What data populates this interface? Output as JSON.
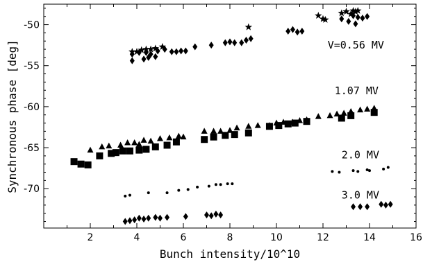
{
  "chart_data": {
    "type": "scatter",
    "title": "",
    "xlabel": "Bunch intensity/10^10",
    "ylabel": "Synchronous phase [deg]",
    "xlim": [
      0,
      16
    ],
    "ylim": [
      -74.8,
      -47.5
    ],
    "xticks": [
      2,
      4,
      6,
      8,
      10,
      12,
      14,
      16
    ],
    "yticks": [
      -50,
      -55,
      -60,
      -65,
      -70
    ],
    "grid": false,
    "annotations": [
      {
        "text": "V=0.56 MV",
        "x": 12.2,
        "y": -52.9
      },
      {
        "text": "1.07 MV",
        "x": 12.5,
        "y": -58.5
      },
      {
        "text": "2.0 MV",
        "x": 12.8,
        "y": -66.3
      },
      {
        "text": "3.0 MV",
        "x": 12.8,
        "y": -71.2
      }
    ],
    "series": [
      {
        "marker": "star",
        "points": [
          [
            3.8,
            -53.3
          ],
          [
            4.0,
            -53.3
          ],
          [
            4.2,
            -53.1
          ],
          [
            4.4,
            -53.0
          ],
          [
            4.6,
            -53.0
          ],
          [
            4.8,
            -52.9
          ],
          [
            5.1,
            -52.7
          ],
          [
            8.8,
            -50.3
          ],
          [
            11.8,
            -48.9
          ],
          [
            12.0,
            -49.3
          ],
          [
            12.1,
            -49.4
          ],
          [
            12.8,
            -48.6
          ],
          [
            13.0,
            -48.4
          ],
          [
            13.2,
            -48.7
          ],
          [
            13.3,
            -48.3
          ],
          [
            13.4,
            -48.4
          ],
          [
            13.5,
            -48.3
          ]
        ]
      },
      {
        "marker": "diamond",
        "points": [
          [
            3.8,
            -53.6
          ],
          [
            3.8,
            -54.4
          ],
          [
            4.1,
            -53.4
          ],
          [
            4.3,
            -54.2
          ],
          [
            4.4,
            -53.4
          ],
          [
            4.5,
            -54.0
          ],
          [
            4.6,
            -53.6
          ],
          [
            4.8,
            -53.9
          ],
          [
            4.9,
            -53.2
          ],
          [
            5.2,
            -53.0
          ],
          [
            5.5,
            -53.3
          ],
          [
            5.7,
            -53.3
          ],
          [
            5.9,
            -53.2
          ],
          [
            6.1,
            -53.2
          ],
          [
            6.5,
            -52.7
          ],
          [
            7.2,
            -52.5
          ],
          [
            7.8,
            -52.2
          ],
          [
            8.0,
            -52.1
          ],
          [
            8.2,
            -52.2
          ],
          [
            8.5,
            -52.2
          ],
          [
            8.7,
            -51.9
          ],
          [
            8.9,
            -51.7
          ],
          [
            10.5,
            -50.8
          ],
          [
            10.7,
            -50.6
          ],
          [
            10.9,
            -50.9
          ],
          [
            11.1,
            -50.8
          ],
          [
            12.8,
            -49.3
          ],
          [
            13.1,
            -49.6
          ],
          [
            13.3,
            -48.9
          ],
          [
            13.4,
            -49.9
          ],
          [
            13.5,
            -49.1
          ],
          [
            13.7,
            -49.2
          ],
          [
            13.9,
            -49.0
          ],
          [
            3.5,
            -74.0
          ],
          [
            3.7,
            -73.9
          ],
          [
            3.9,
            -73.8
          ],
          [
            4.1,
            -73.6
          ],
          [
            4.3,
            -73.7
          ],
          [
            4.5,
            -73.6
          ],
          [
            4.8,
            -73.5
          ],
          [
            5.0,
            -73.6
          ],
          [
            5.3,
            -73.5
          ],
          [
            6.1,
            -73.4
          ],
          [
            7.0,
            -73.2
          ],
          [
            7.2,
            -73.3
          ],
          [
            7.4,
            -73.1
          ],
          [
            7.6,
            -73.2
          ],
          [
            13.3,
            -72.2
          ],
          [
            13.6,
            -72.2
          ],
          [
            13.9,
            -72.2
          ],
          [
            14.5,
            -71.9
          ],
          [
            14.7,
            -72.0
          ],
          [
            14.9,
            -71.9
          ]
        ]
      },
      {
        "marker": "triangle",
        "points": [
          [
            2.0,
            -65.3
          ],
          [
            2.5,
            -64.9
          ],
          [
            2.8,
            -64.8
          ],
          [
            3.3,
            -64.7
          ],
          [
            3.6,
            -64.4
          ],
          [
            3.9,
            -64.4
          ],
          [
            4.1,
            -64.6
          ],
          [
            4.3,
            -64.1
          ],
          [
            4.6,
            -64.2
          ],
          [
            5.0,
            -63.9
          ],
          [
            5.4,
            -63.8
          ],
          [
            5.8,
            -63.6
          ],
          [
            6.0,
            -63.7
          ],
          [
            6.9,
            -63.0
          ],
          [
            7.3,
            -63.0
          ],
          [
            7.6,
            -63.0
          ],
          [
            8.0,
            -62.9
          ],
          [
            8.3,
            -62.6
          ],
          [
            8.8,
            -62.4
          ],
          [
            9.2,
            -62.3
          ],
          [
            9.7,
            -62.3
          ],
          [
            10.0,
            -62.0
          ],
          [
            10.3,
            -61.9
          ],
          [
            10.7,
            -61.9
          ],
          [
            11.0,
            -61.7
          ],
          [
            11.3,
            -61.6
          ],
          [
            11.8,
            -61.2
          ],
          [
            12.3,
            -61.1
          ],
          [
            12.6,
            -60.9
          ],
          [
            12.9,
            -60.8
          ],
          [
            13.2,
            -60.6
          ],
          [
            13.6,
            -60.4
          ],
          [
            13.9,
            -60.3
          ],
          [
            14.2,
            -60.2
          ]
        ]
      },
      {
        "marker": "square",
        "points": [
          [
            1.3,
            -66.7
          ],
          [
            1.6,
            -67.0
          ],
          [
            1.9,
            -67.1
          ],
          [
            2.4,
            -66.0
          ],
          [
            2.9,
            -65.7
          ],
          [
            3.1,
            -65.6
          ],
          [
            3.4,
            -65.4
          ],
          [
            3.7,
            -65.4
          ],
          [
            4.1,
            -65.3
          ],
          [
            4.4,
            -65.2
          ],
          [
            4.8,
            -64.9
          ],
          [
            5.3,
            -64.7
          ],
          [
            5.7,
            -64.3
          ],
          [
            6.9,
            -64.0
          ],
          [
            7.3,
            -63.7
          ],
          [
            7.8,
            -63.5
          ],
          [
            8.2,
            -63.4
          ],
          [
            8.8,
            -63.2
          ],
          [
            9.7,
            -62.4
          ],
          [
            10.1,
            -62.3
          ],
          [
            10.5,
            -62.1
          ],
          [
            10.8,
            -62.0
          ],
          [
            11.3,
            -61.8
          ],
          [
            12.8,
            -61.4
          ],
          [
            13.2,
            -61.1
          ],
          [
            14.2,
            -60.7
          ]
        ]
      },
      {
        "marker": "dot",
        "points": [
          [
            3.5,
            -70.9
          ],
          [
            3.7,
            -70.8
          ],
          [
            4.5,
            -70.5
          ],
          [
            5.3,
            -70.5
          ],
          [
            5.8,
            -70.2
          ],
          [
            6.2,
            -70.1
          ],
          [
            6.6,
            -69.8
          ],
          [
            7.1,
            -69.7
          ],
          [
            7.4,
            -69.5
          ],
          [
            7.6,
            -69.5
          ],
          [
            7.9,
            -69.4
          ],
          [
            8.1,
            -69.4
          ],
          [
            12.4,
            -67.9
          ],
          [
            12.7,
            -68.0
          ],
          [
            13.3,
            -67.8
          ],
          [
            13.5,
            -67.9
          ],
          [
            13.9,
            -67.7
          ],
          [
            14.0,
            -67.8
          ],
          [
            14.6,
            -67.6
          ],
          [
            14.8,
            -67.4
          ]
        ]
      }
    ]
  }
}
